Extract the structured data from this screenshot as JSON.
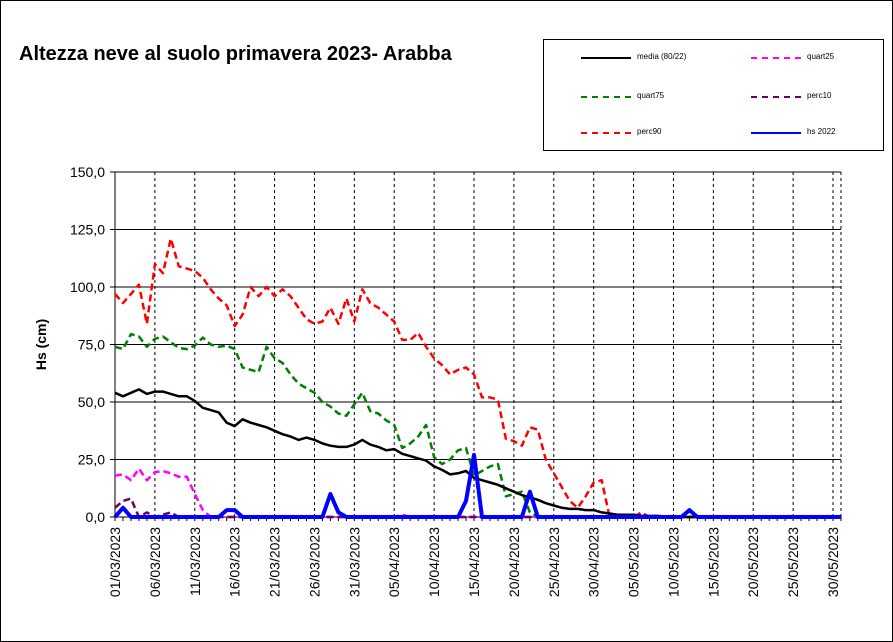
{
  "chart_data": {
    "type": "line",
    "title": "Altezza neve al suolo primavera 2023- Arabba",
    "ylabel": "Hs (cm)",
    "xlabel": "",
    "ylim": [
      0,
      150
    ],
    "y_ticks": [
      "0,0",
      "25,0",
      "50,0",
      "75,0",
      "100,0",
      "125,0",
      "150,0"
    ],
    "x_tick_labels": [
      "01/03/2023",
      "06/03/2023",
      "11/03/2023",
      "16/03/2023",
      "21/03/2023",
      "26/03/2023",
      "31/03/2023",
      "05/04/2023",
      "10/04/2023",
      "15/04/2023",
      "20/04/2023",
      "25/04/2023",
      "30/04/2023",
      "05/05/2023",
      "10/05/2023",
      "15/05/2023",
      "20/05/2023",
      "25/05/2023",
      "30/05/2023"
    ],
    "grid": true,
    "legend_position": "top-right",
    "x_start_date": "01/03/2023",
    "x_end_date": "31/05/2023",
    "series": [
      {
        "name": "media (80/22)",
        "color": "#000000",
        "dash": "solid",
        "width": 2.5,
        "points": [
          [
            "01/03/2023",
            54
          ],
          [
            "02/03/2023",
            52.5
          ],
          [
            "03/03/2023",
            54
          ],
          [
            "04/03/2023",
            55.5
          ],
          [
            "05/03/2023",
            53.5
          ],
          [
            "06/03/2023",
            54.5
          ],
          [
            "07/03/2023",
            54.5
          ],
          [
            "08/03/2023",
            53.5
          ],
          [
            "09/03/2023",
            52.5
          ],
          [
            "10/03/2023",
            52.5
          ],
          [
            "11/03/2023",
            50.5
          ],
          [
            "12/03/2023",
            47.5
          ],
          [
            "13/03/2023",
            46.5
          ],
          [
            "14/03/2023",
            45.5
          ],
          [
            "15/03/2023",
            41
          ],
          [
            "16/03/2023",
            39.5
          ],
          [
            "17/03/2023",
            42.5
          ],
          [
            "18/03/2023",
            41
          ],
          [
            "19/03/2023",
            40
          ],
          [
            "20/03/2023",
            39
          ],
          [
            "21/03/2023",
            37.5
          ],
          [
            "22/03/2023",
            36
          ],
          [
            "23/03/2023",
            35
          ],
          [
            "24/03/2023",
            33.5
          ],
          [
            "25/03/2023",
            34.5
          ],
          [
            "26/03/2023",
            33.5
          ],
          [
            "27/03/2023",
            32
          ],
          [
            "28/03/2023",
            31
          ],
          [
            "29/03/2023",
            30.5
          ],
          [
            "30/03/2023",
            30.5
          ],
          [
            "31/03/2023",
            31.5
          ],
          [
            "01/04/2023",
            33.5
          ],
          [
            "02/04/2023",
            31.5
          ],
          [
            "03/04/2023",
            30.5
          ],
          [
            "04/04/2023",
            29
          ],
          [
            "05/04/2023",
            29.5
          ],
          [
            "06/04/2023",
            27.5
          ],
          [
            "07/04/2023",
            26.5
          ],
          [
            "08/04/2023",
            25.5
          ],
          [
            "09/04/2023",
            24.5
          ],
          [
            "10/04/2023",
            22
          ],
          [
            "11/04/2023",
            20.5
          ],
          [
            "12/04/2023",
            18.5
          ],
          [
            "13/04/2023",
            19
          ],
          [
            "14/04/2023",
            20
          ],
          [
            "15/04/2023",
            17
          ],
          [
            "16/04/2023",
            16
          ],
          [
            "17/04/2023",
            15
          ],
          [
            "18/04/2023",
            14
          ],
          [
            "19/04/2023",
            12.5
          ],
          [
            "20/04/2023",
            11
          ],
          [
            "21/04/2023",
            9.5
          ],
          [
            "22/04/2023",
            8.5
          ],
          [
            "23/04/2023",
            7.5
          ],
          [
            "24/04/2023",
            6
          ],
          [
            "25/04/2023",
            5
          ],
          [
            "26/04/2023",
            4
          ],
          [
            "27/04/2023",
            3.5
          ],
          [
            "28/04/2023",
            3.5
          ],
          [
            "29/04/2023",
            3
          ],
          [
            "30/04/2023",
            3
          ],
          [
            "01/05/2023",
            2
          ],
          [
            "02/05/2023",
            1.5
          ],
          [
            "03/05/2023",
            1
          ],
          [
            "04/05/2023",
            1
          ],
          [
            "05/05/2023",
            1
          ],
          [
            "06/05/2023",
            0.5
          ],
          [
            "07/05/2023",
            0.5
          ],
          [
            "08/05/2023",
            0.5
          ],
          [
            "09/05/2023",
            0.2
          ],
          [
            "10/05/2023",
            0.2
          ],
          [
            "11/05/2023",
            0
          ],
          [
            "31/05/2023",
            0
          ]
        ]
      },
      {
        "name": "quart25",
        "color": "#ff00ff",
        "dash": "dashed",
        "width": 2.5,
        "points": [
          [
            "01/03/2023",
            18
          ],
          [
            "02/03/2023",
            18.5
          ],
          [
            "03/03/2023",
            16
          ],
          [
            "04/03/2023",
            21
          ],
          [
            "05/03/2023",
            16
          ],
          [
            "06/03/2023",
            19.5
          ],
          [
            "07/03/2023",
            20
          ],
          [
            "08/03/2023",
            19
          ],
          [
            "09/03/2023",
            17.5
          ],
          [
            "10/03/2023",
            17.5
          ],
          [
            "11/03/2023",
            10
          ],
          [
            "12/03/2023",
            3
          ],
          [
            "13/03/2023",
            0
          ],
          [
            "05/04/2023",
            0
          ],
          [
            "06/04/2023",
            1
          ],
          [
            "07/04/2023",
            0
          ],
          [
            "02/05/2023",
            0
          ],
          [
            "03/05/2023",
            1
          ],
          [
            "04/05/2023",
            0
          ],
          [
            "31/05/2023",
            0
          ]
        ]
      },
      {
        "name": "quart75",
        "color": "#008000",
        "dash": "dashed",
        "width": 2.5,
        "points": [
          [
            "01/03/2023",
            74
          ],
          [
            "02/03/2023",
            73
          ],
          [
            "03/03/2023",
            79.5
          ],
          [
            "04/03/2023",
            78.5
          ],
          [
            "05/03/2023",
            74
          ],
          [
            "06/03/2023",
            77.5
          ],
          [
            "07/03/2023",
            78.5
          ],
          [
            "08/03/2023",
            76
          ],
          [
            "09/03/2023",
            73.5
          ],
          [
            "10/03/2023",
            73
          ],
          [
            "11/03/2023",
            74.5
          ],
          [
            "12/03/2023",
            78
          ],
          [
            "13/03/2023",
            75
          ],
          [
            "14/03/2023",
            74
          ],
          [
            "15/03/2023",
            74.5
          ],
          [
            "16/03/2023",
            73
          ],
          [
            "17/03/2023",
            65
          ],
          [
            "18/03/2023",
            64
          ],
          [
            "19/03/2023",
            63
          ],
          [
            "20/03/2023",
            74
          ],
          [
            "21/03/2023",
            69
          ],
          [
            "22/03/2023",
            67
          ],
          [
            "23/03/2023",
            62
          ],
          [
            "24/03/2023",
            58
          ],
          [
            "25/03/2023",
            56
          ],
          [
            "26/03/2023",
            54
          ],
          [
            "27/03/2023",
            50
          ],
          [
            "28/03/2023",
            48
          ],
          [
            "29/03/2023",
            45
          ],
          [
            "30/03/2023",
            44
          ],
          [
            "31/03/2023",
            49
          ],
          [
            "01/04/2023",
            54
          ],
          [
            "02/04/2023",
            46
          ],
          [
            "03/04/2023",
            45
          ],
          [
            "04/04/2023",
            42
          ],
          [
            "05/04/2023",
            40
          ],
          [
            "06/04/2023",
            30
          ],
          [
            "07/04/2023",
            32
          ],
          [
            "08/04/2023",
            35
          ],
          [
            "09/04/2023",
            40
          ],
          [
            "10/04/2023",
            26
          ],
          [
            "11/04/2023",
            23
          ],
          [
            "12/04/2023",
            25
          ],
          [
            "13/04/2023",
            29
          ],
          [
            "14/04/2023",
            30
          ],
          [
            "15/04/2023",
            18
          ],
          [
            "16/04/2023",
            20
          ],
          [
            "17/04/2023",
            22
          ],
          [
            "18/04/2023",
            23
          ],
          [
            "19/04/2023",
            9
          ],
          [
            "20/04/2023",
            10
          ],
          [
            "21/04/2023",
            11
          ],
          [
            "22/04/2023",
            2
          ],
          [
            "23/04/2023",
            0
          ],
          [
            "31/05/2023",
            0
          ]
        ]
      },
      {
        "name": "perc10",
        "color": "#660066",
        "dash": "dashed",
        "width": 2.5,
        "points": [
          [
            "01/03/2023",
            4
          ],
          [
            "02/03/2023",
            7
          ],
          [
            "03/03/2023",
            8
          ],
          [
            "04/03/2023",
            0
          ],
          [
            "05/03/2023",
            2
          ],
          [
            "06/03/2023",
            0
          ],
          [
            "07/03/2023",
            1
          ],
          [
            "08/03/2023",
            2
          ],
          [
            "09/03/2023",
            0
          ],
          [
            "31/05/2023",
            0
          ]
        ]
      },
      {
        "name": "perc90",
        "color": "#ff0000",
        "dash": "dashed",
        "width": 2.5,
        "points": [
          [
            "01/03/2023",
            97
          ],
          [
            "02/03/2023",
            93
          ],
          [
            "03/03/2023",
            97
          ],
          [
            "04/03/2023",
            101
          ],
          [
            "05/03/2023",
            84
          ],
          [
            "06/03/2023",
            110
          ],
          [
            "07/03/2023",
            106
          ],
          [
            "08/03/2023",
            121
          ],
          [
            "09/03/2023",
            109
          ],
          [
            "10/03/2023",
            108
          ],
          [
            "11/03/2023",
            107
          ],
          [
            "12/03/2023",
            104
          ],
          [
            "13/03/2023",
            99
          ],
          [
            "14/03/2023",
            95
          ],
          [
            "15/03/2023",
            92
          ],
          [
            "16/03/2023",
            83
          ],
          [
            "17/03/2023",
            88
          ],
          [
            "18/03/2023",
            100
          ],
          [
            "19/03/2023",
            96
          ],
          [
            "20/03/2023",
            100
          ],
          [
            "21/03/2023",
            96
          ],
          [
            "22/03/2023",
            99
          ],
          [
            "23/03/2023",
            96
          ],
          [
            "24/03/2023",
            91
          ],
          [
            "25/03/2023",
            86
          ],
          [
            "26/03/2023",
            84
          ],
          [
            "27/03/2023",
            85
          ],
          [
            "28/03/2023",
            91
          ],
          [
            "29/03/2023",
            84
          ],
          [
            "30/03/2023",
            95
          ],
          [
            "31/03/2023",
            85
          ],
          [
            "01/04/2023",
            99
          ],
          [
            "02/04/2023",
            93
          ],
          [
            "03/04/2023",
            91
          ],
          [
            "04/04/2023",
            88
          ],
          [
            "05/04/2023",
            85
          ],
          [
            "06/04/2023",
            77
          ],
          [
            "07/04/2023",
            77
          ],
          [
            "08/04/2023",
            80
          ],
          [
            "09/04/2023",
            74
          ],
          [
            "10/04/2023",
            69
          ],
          [
            "11/04/2023",
            66
          ],
          [
            "12/04/2023",
            62
          ],
          [
            "13/04/2023",
            64
          ],
          [
            "14/04/2023",
            65
          ],
          [
            "15/04/2023",
            62
          ],
          [
            "16/04/2023",
            52
          ],
          [
            "17/04/2023",
            52
          ],
          [
            "18/04/2023",
            51
          ],
          [
            "19/04/2023",
            34
          ],
          [
            "20/04/2023",
            33
          ],
          [
            "21/04/2023",
            31
          ],
          [
            "22/04/2023",
            39
          ],
          [
            "23/04/2023",
            38
          ],
          [
            "24/04/2023",
            25
          ],
          [
            "25/04/2023",
            19
          ],
          [
            "26/04/2023",
            13
          ],
          [
            "27/04/2023",
            7
          ],
          [
            "28/04/2023",
            4
          ],
          [
            "29/04/2023",
            9
          ],
          [
            "30/04/2023",
            15
          ],
          [
            "01/05/2023",
            16
          ],
          [
            "02/05/2023",
            0
          ],
          [
            "05/05/2023",
            0
          ],
          [
            "06/05/2023",
            2
          ],
          [
            "07/05/2023",
            0
          ],
          [
            "31/05/2023",
            0
          ]
        ]
      },
      {
        "name": "hs 2022",
        "color": "#0000ff",
        "dash": "solid",
        "width": 4,
        "points": [
          [
            "01/03/2023",
            0
          ],
          [
            "02/03/2023",
            4
          ],
          [
            "03/03/2023",
            0
          ],
          [
            "14/03/2023",
            0
          ],
          [
            "15/03/2023",
            3
          ],
          [
            "16/03/2023",
            3
          ],
          [
            "17/03/2023",
            0
          ],
          [
            "27/03/2023",
            0
          ],
          [
            "28/03/2023",
            10
          ],
          [
            "29/03/2023",
            2
          ],
          [
            "30/03/2023",
            0
          ],
          [
            "13/04/2023",
            0
          ],
          [
            "14/04/2023",
            7
          ],
          [
            "15/04/2023",
            27
          ],
          [
            "16/04/2023",
            0
          ],
          [
            "21/04/2023",
            0
          ],
          [
            "22/04/2023",
            11
          ],
          [
            "23/04/2023",
            0
          ],
          [
            "11/05/2023",
            0
          ],
          [
            "12/05/2023",
            3
          ],
          [
            "13/05/2023",
            0
          ],
          [
            "31/05/2023",
            0
          ]
        ]
      }
    ]
  }
}
